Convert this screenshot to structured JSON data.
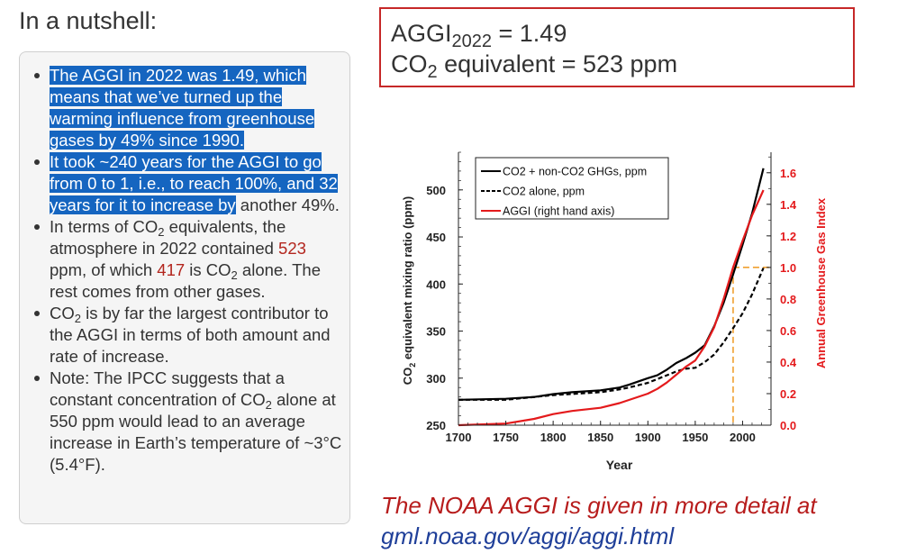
{
  "page": {
    "heading": "In a nutshell:",
    "aggi_box": {
      "line1_prefix": "AGGI",
      "line1_sub": "2022",
      "line1_suffix": " = 1.49",
      "line2_prefix": "CO",
      "line2_sub": "2",
      "line2_suffix": " equivalent = 523 ppm"
    },
    "bullets": {
      "b1": "The AGGI in 2022 was 1.49, which means that we’ve turned up the warming influence from greenhouse gases by 49% since 1990.",
      "b2_highlighted": "It took ~240 years for the AGGI to go from 0 to 1, i.e., to reach 100%, and 32 years for it to increase by",
      "b2_rest": " another 49%.",
      "b3_a": "In terms of CO",
      "b3_sub1": "2",
      "b3_b": " equivalents, the atmosphere in 2022 contained ",
      "b3_v1": "523",
      "b3_c": " ppm, of which ",
      "b3_v2": "417",
      "b3_d": " is CO",
      "b3_sub2": "2",
      "b3_e": " alone. The rest comes from other gases.",
      "b4_a": "CO",
      "b4_sub": "2",
      "b4_b": " is by far the largest contributor to the AGGI in terms of both amount and rate of increase.",
      "b5_a": "Note: The IPCC suggests that a constant concentration of CO",
      "b5_sub": "2",
      "b5_b": " alone at 550 ppm would lead to an average increase in Earth’s temperature of ~3°C (5.4°F)."
    },
    "footer_line1": "The NOAA AGGI is given in more detail at",
    "footer_line2": "gml.noaa.gov/aggi/aggi.html",
    "colors": {
      "highlight": "#1565c0",
      "value_red": "#b3261e",
      "box_border": "#c62828",
      "footer_red": "#b71c1c",
      "footer_blue": "#1f3f99"
    }
  },
  "chart_data": {
    "type": "line",
    "xlabel": "Year",
    "ylabel_prefix": "CO",
    "ylabel_sub": "2",
    "ylabel_suffix": " equivalent mixing ratio (ppm)",
    "y2label": "Annual Greenhouse Gas Index",
    "xlim": [
      1700,
      2030
    ],
    "ylim": [
      250,
      540
    ],
    "y2lim": [
      0,
      1.73
    ],
    "xticks": [
      1700,
      1750,
      1800,
      1850,
      1900,
      1950,
      2000
    ],
    "yticks": [
      250,
      300,
      350,
      400,
      450,
      500
    ],
    "y2ticks": [
      0.0,
      0.2,
      0.4,
      0.6,
      0.8,
      1.0,
      1.2,
      1.4,
      1.6
    ],
    "y2tick_labels": [
      "0.0",
      "0.2",
      "0.4",
      "0.6",
      "0.8",
      "1.0",
      "1.2",
      "1.4",
      "1.6"
    ],
    "legend_position": "top-left",
    "series": [
      {
        "name": "CO2 + non-CO2 GHGs, ppm",
        "color": "#000000",
        "dash": "solid",
        "axis": "left",
        "x": [
          1700,
          1750,
          1780,
          1800,
          1820,
          1850,
          1870,
          1880,
          1900,
          1910,
          1920,
          1930,
          1940,
          1950,
          1960,
          1970,
          1980,
          1990,
          2000,
          2010,
          2022
        ],
        "y": [
          277,
          278,
          280,
          283,
          285,
          287,
          290,
          293,
          300,
          303,
          309,
          316,
          321,
          327,
          335,
          355,
          380,
          410,
          442,
          475,
          523
        ]
      },
      {
        "name": "CO2 alone, ppm",
        "color": "#000000",
        "dash": "dashed",
        "axis": "left",
        "x": [
          1700,
          1750,
          1800,
          1850,
          1870,
          1880,
          1900,
          1910,
          1920,
          1930,
          1940,
          1950,
          1960,
          1970,
          1980,
          1990,
          2000,
          2010,
          2022
        ],
        "y": [
          277,
          277,
          282,
          285,
          288,
          290,
          295,
          299,
          303,
          307,
          310,
          311,
          317,
          325,
          338,
          353,
          369,
          389,
          417
        ]
      },
      {
        "name": "AGGI (right hand axis)",
        "color": "#e41a1c",
        "dash": "solid",
        "axis": "right",
        "x": [
          1700,
          1750,
          1780,
          1800,
          1820,
          1850,
          1870,
          1880,
          1900,
          1910,
          1920,
          1930,
          1940,
          1950,
          1960,
          1970,
          1980,
          1990,
          2000,
          2010,
          2022
        ],
        "y": [
          0.0,
          0.01,
          0.04,
          0.07,
          0.09,
          0.11,
          0.14,
          0.16,
          0.2,
          0.23,
          0.27,
          0.32,
          0.37,
          0.41,
          0.5,
          0.62,
          0.8,
          1.0,
          1.17,
          1.33,
          1.49
        ]
      }
    ],
    "guides": {
      "baseline_aggi": 0.0,
      "reference_year": 1990,
      "reference_aggi": 1.0
    }
  }
}
